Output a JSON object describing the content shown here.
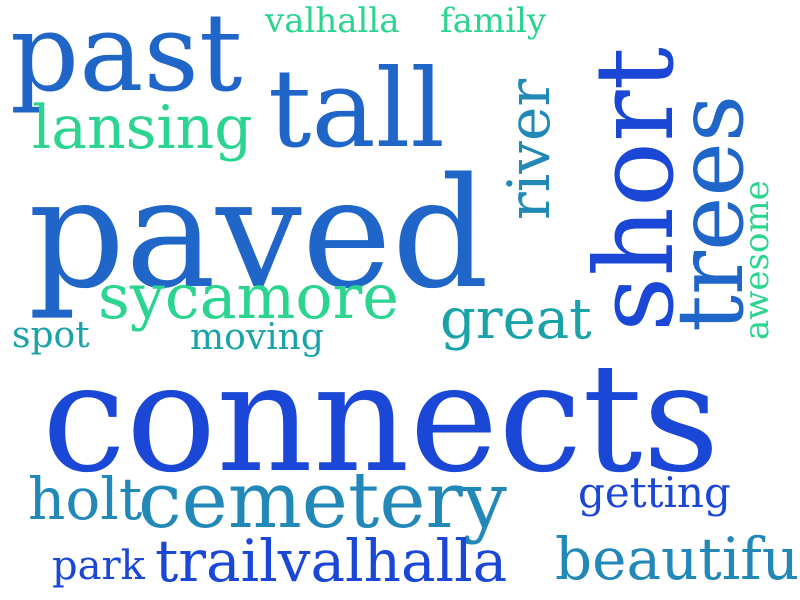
{
  "words": {
    "connects": "connects",
    "paved": "paved",
    "past": "past",
    "tall": "tall",
    "cemetery": "cemetery",
    "short": "short",
    "trees": "trees",
    "trailvalhalla": "trailvalhalla",
    "sycamore": "sycamore",
    "lansing": "lansing",
    "beautiful": "beautiful",
    "river": "river",
    "holt": "holt",
    "great": "great",
    "getting": "getting",
    "valhalla": "valhalla",
    "family": "family",
    "awesome": "awesome",
    "moving": "moving",
    "spot": "spot",
    "park": "park"
  },
  "colors": {
    "deep_blue": "#1a47d6",
    "mid_blue": "#1f66c8",
    "teal_blue": "#2288b8",
    "teal": "#19a2a8",
    "green": "#2bd48f"
  }
}
